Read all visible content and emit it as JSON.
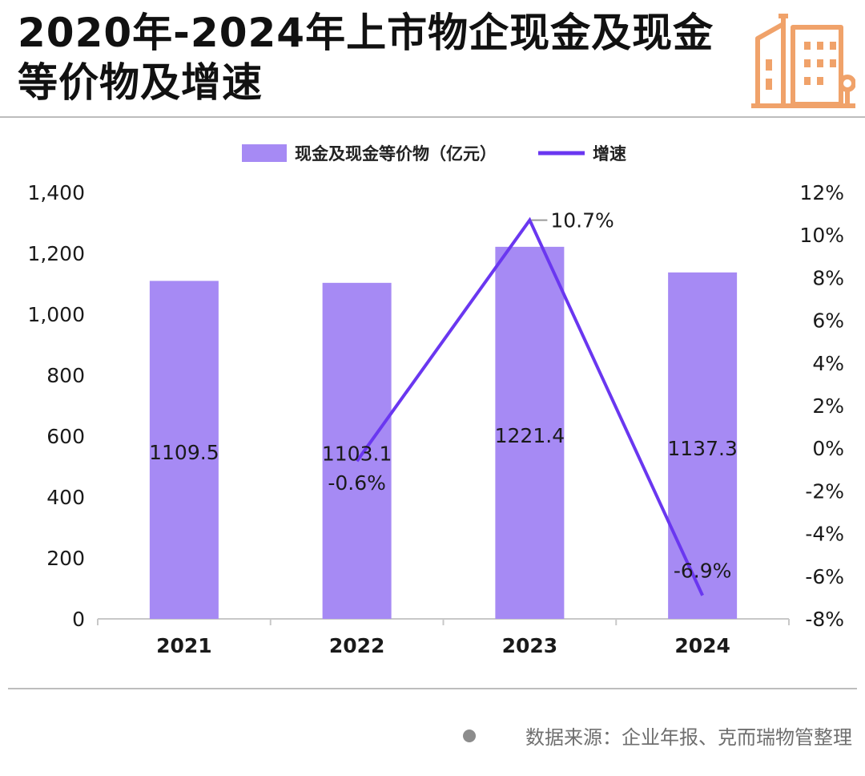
{
  "header": {
    "title": "2020年-2024年上市物企现金及现金等价物及增速"
  },
  "footer": {
    "source": "数据来源：企业年报、克而瑞物管整理"
  },
  "colors": {
    "bar": "#a68af4",
    "line": "#6a37f0",
    "logo": "#f0a26a",
    "axis": "#c8c8c8"
  },
  "chart_data": {
    "type": "bar",
    "categories": [
      "2021",
      "2022",
      "2023",
      "2024"
    ],
    "series": [
      {
        "name": "现金及现金等价物（亿元）",
        "type": "bar",
        "axis": "left",
        "values": [
          1109.5,
          1103.1,
          1221.4,
          1137.3
        ],
        "labels": [
          "1109.5",
          "1103.1",
          "1221.4",
          "1137.3"
        ]
      },
      {
        "name": "增速",
        "type": "line",
        "axis": "right",
        "values": [
          null,
          -0.6,
          10.7,
          -6.9
        ],
        "labels": [
          "",
          "-0.6%",
          "10.7%",
          "-6.9%"
        ]
      }
    ],
    "ylim_left": [
      0,
      1400
    ],
    "yticks_left": [
      "0",
      "200",
      "400",
      "600",
      "800",
      "1,000",
      "1,200",
      "1,400"
    ],
    "ylim_right": [
      -8,
      12
    ],
    "yticks_right": [
      "-8%",
      "-6%",
      "-4%",
      "-2%",
      "0%",
      "2%",
      "4%",
      "6%",
      "8%",
      "10%",
      "12%"
    ],
    "legend_position": "top",
    "grid": false
  }
}
